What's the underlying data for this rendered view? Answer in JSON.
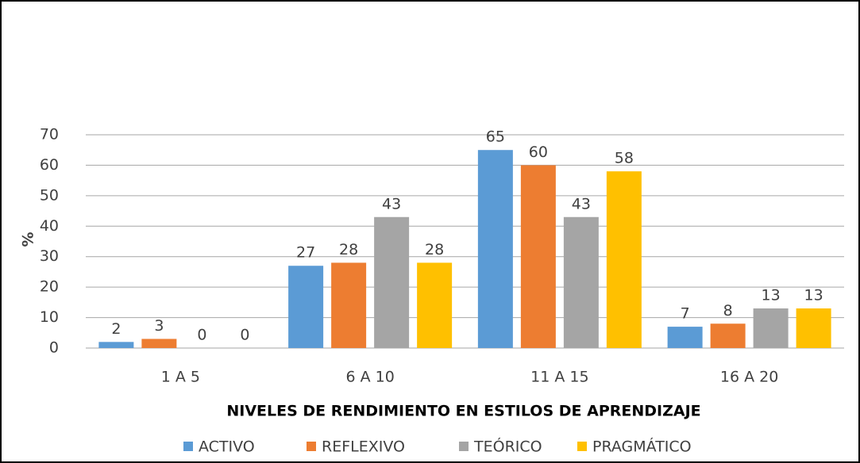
{
  "chart_data": {
    "type": "bar",
    "categories": [
      "1 A 5",
      "6 A 10",
      "11 A 15",
      "16 A 20"
    ],
    "series": [
      {
        "name": "ACTIVO",
        "color": "#5b9bd5",
        "values": [
          2,
          27,
          65,
          7
        ]
      },
      {
        "name": "REFLEXIVO",
        "color": "#ed7d31",
        "values": [
          3,
          28,
          60,
          8
        ]
      },
      {
        "name": "TEÓRICO",
        "color": "#a5a5a5",
        "values": [
          0,
          43,
          43,
          13
        ]
      },
      {
        "name": "PRAGMÁTICO",
        "color": "#ffc000",
        "values": [
          0,
          28,
          58,
          13
        ]
      }
    ],
    "x_label": "NIVELES DE RENDIMIENTO EN ESTILOS DE APRENDIZAJE",
    "y_label": "%",
    "ylim": [
      0,
      70
    ],
    "yticks": [
      0,
      10,
      20,
      30,
      40,
      50,
      60,
      70
    ],
    "grid": true,
    "legend": "bottom"
  }
}
